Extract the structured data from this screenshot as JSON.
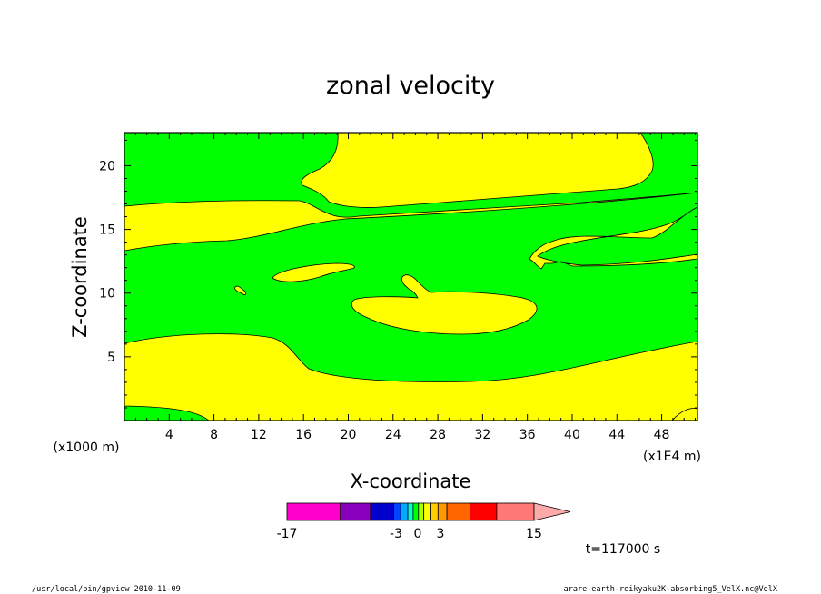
{
  "chart_data": {
    "type": "contour",
    "title": "zonal velocity",
    "xlabel": "X-coordinate",
    "ylabel": "Z-coordinate",
    "x_unit_left": "(x1000 m)",
    "x_unit_right": "(x1E4 m)",
    "x_ticks": [
      "4",
      "8",
      "12",
      "16",
      "20",
      "24",
      "28",
      "32",
      "36",
      "40",
      "44",
      "48"
    ],
    "y_ticks": [
      "5",
      "10",
      "15",
      "20"
    ],
    "xlim": [
      0,
      51.2
    ],
    "ylim": [
      0,
      22.6
    ],
    "fill_colors": {
      "negative": "#00ff00",
      "positive": "#ffff00"
    },
    "colorbar": {
      "levels": [
        "-17",
        "-3",
        "0",
        "3",
        "15"
      ],
      "colors": [
        "#ff00cc",
        "#8800bb",
        "#0000cc",
        "#0044ff",
        "#00aaff",
        "#00ffcc",
        "#00ff00",
        "#aaff00",
        "#ffff00",
        "#ffcc00",
        "#ff9900",
        "#ff6600",
        "#ff0000",
        "#ff7777",
        "#ffaaaa"
      ]
    },
    "time_label": "t=117000 s"
  },
  "footer": {
    "left": "/usr/local/bin/gpview  2010-11-09",
    "right": "arare-earth-reikyaku2K-absorbing5_VelX.nc@VelX"
  }
}
